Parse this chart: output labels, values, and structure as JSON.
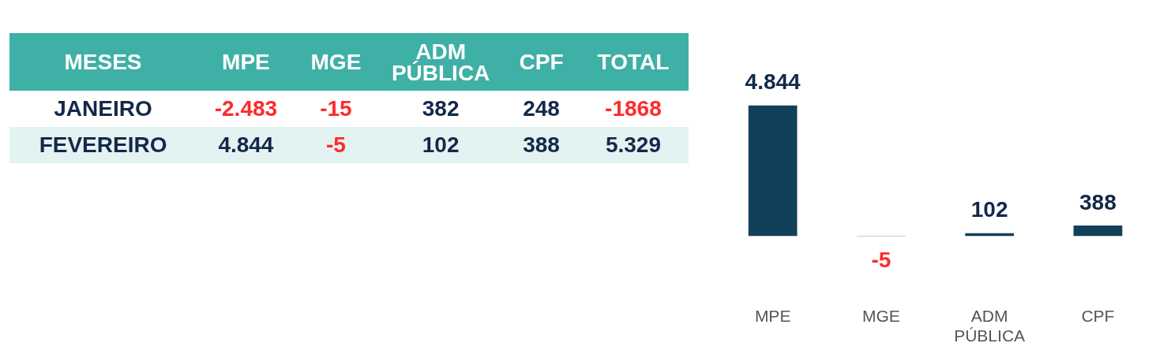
{
  "chart_data": [
    {
      "type": "heatmap",
      "ylabel": "MESES",
      "categories": [
        "MPE",
        "MGE",
        "ADM PÚBLICA",
        "CPF",
        "TOTAL"
      ],
      "y_categories": [
        "JANEIRO",
        "FEVEREIRO"
      ],
      "cells": [
        [
          -2483,
          -15,
          382,
          248,
          -1868
        ],
        [
          4844,
          -5,
          102,
          388,
          5329
        ]
      ],
      "cell_labels": [
        [
          "-2.483",
          "-15",
          "382",
          "248",
          "-1868"
        ],
        [
          "4.844",
          "-5",
          "102",
          "388",
          "5.329"
        ]
      ]
    },
    {
      "type": "bar",
      "categories": [
        "MPE",
        "MGE",
        "ADM PÚBLICA",
        "CPF"
      ],
      "values": [
        4844,
        -5,
        102,
        388
      ],
      "color": "#12405a",
      "value_labels": [
        "4.844",
        "-5",
        "102",
        "388"
      ]
    }
  ]
}
